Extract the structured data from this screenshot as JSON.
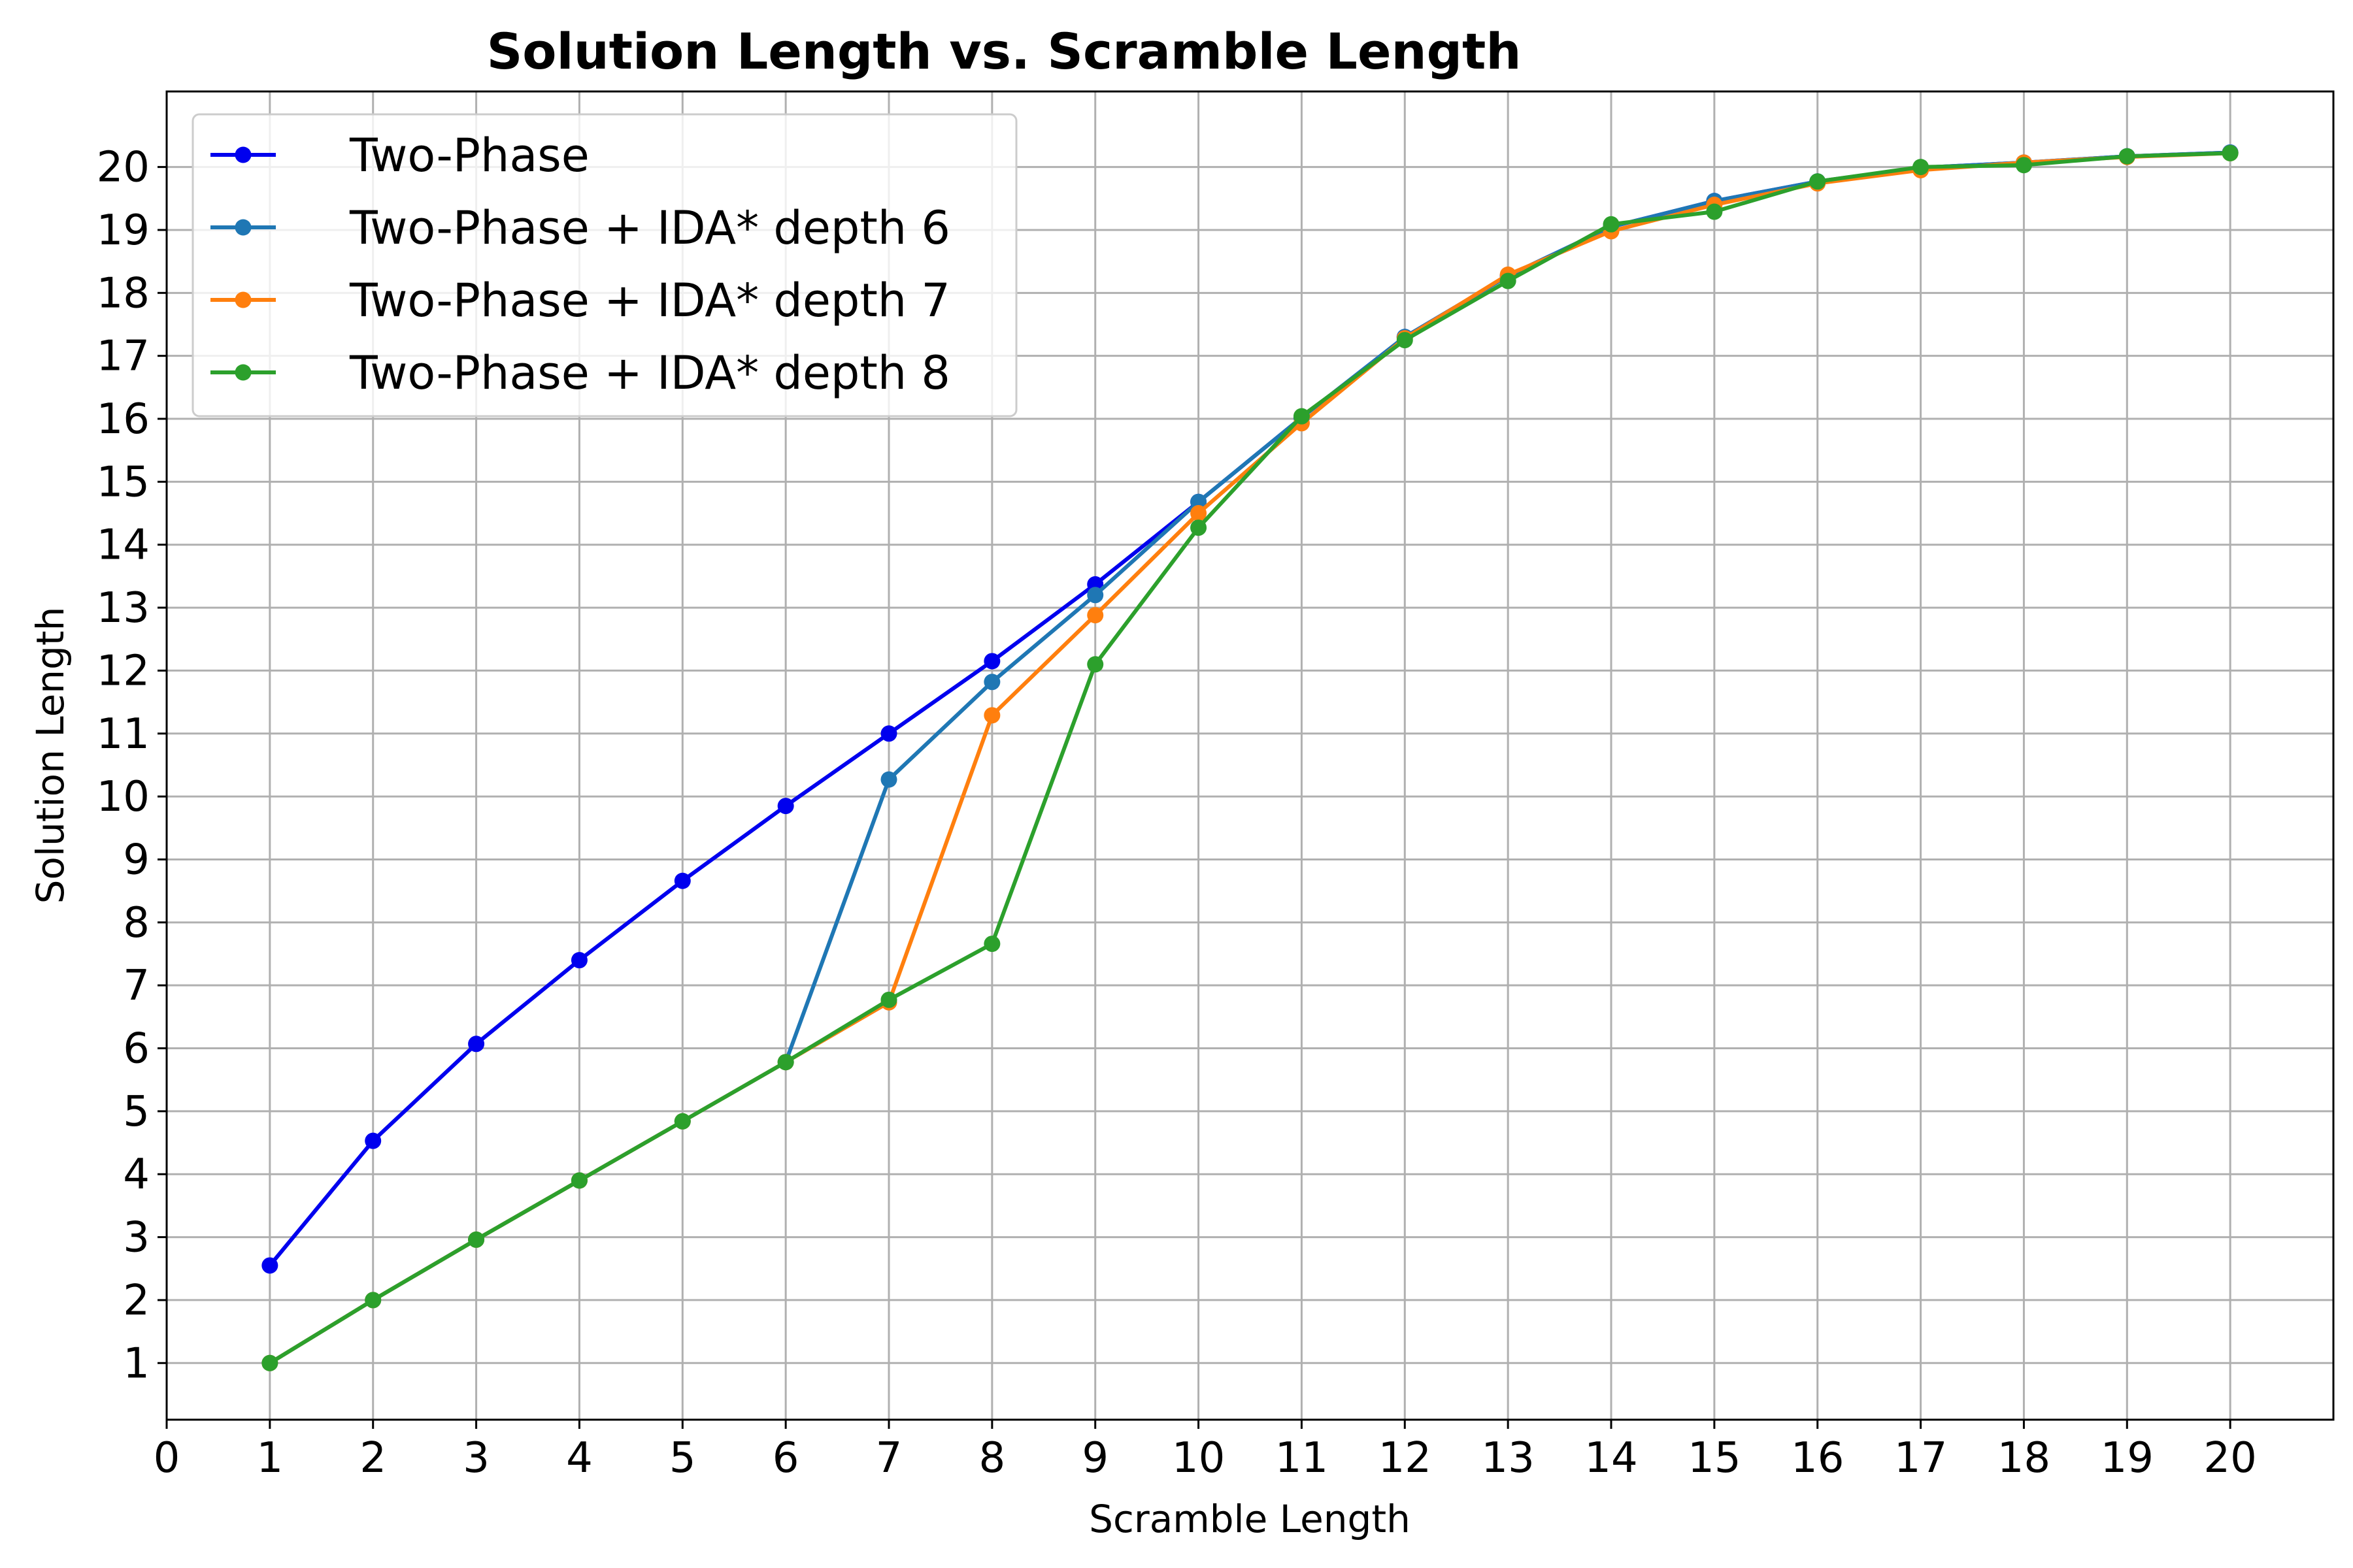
{
  "chart_data": {
    "type": "line",
    "title": "Solution Length vs. Scramble Length",
    "xlabel": "Scramble Length",
    "ylabel": "Solution Length",
    "xlim": [
      0,
      21
    ],
    "ylim": [
      0.1,
      21.2
    ],
    "x_ticks": [
      0,
      1,
      2,
      3,
      4,
      5,
      6,
      7,
      8,
      9,
      10,
      11,
      12,
      13,
      14,
      15,
      16,
      17,
      18,
      19,
      20
    ],
    "y_ticks": [
      1,
      2,
      3,
      4,
      5,
      6,
      7,
      8,
      9,
      10,
      11,
      12,
      13,
      14,
      15,
      16,
      17,
      18,
      19,
      20
    ],
    "grid": true,
    "legend_position": "top-left",
    "x": [
      1,
      2,
      3,
      4,
      5,
      6,
      7,
      8,
      9,
      10,
      11,
      12,
      13,
      14,
      15,
      16,
      17,
      18,
      19,
      20
    ],
    "series": [
      {
        "name": "Two-Phase",
        "color": "#0000ee",
        "values": [
          2.55,
          4.53,
          6.07,
          7.4,
          8.66,
          9.85,
          11.0,
          12.15,
          13.37,
          14.68,
          16.02,
          17.3,
          18.27,
          19.05,
          19.46,
          19.77,
          19.99,
          20.07,
          20.17,
          20.23
        ]
      },
      {
        "name": "Two-Phase + IDA* depth 6",
        "color": "#1f77b4",
        "values": [
          1.0,
          2.0,
          2.96,
          3.9,
          4.84,
          5.78,
          10.27,
          11.82,
          13.2,
          14.68,
          16.02,
          17.3,
          18.27,
          19.05,
          19.46,
          19.77,
          19.99,
          20.07,
          20.17,
          20.23
        ]
      },
      {
        "name": "Two-Phase + IDA* depth 7",
        "color": "#ff7f0e",
        "values": [
          1.0,
          2.0,
          2.96,
          3.9,
          4.84,
          5.78,
          6.73,
          11.29,
          12.88,
          14.5,
          15.93,
          17.28,
          18.29,
          18.98,
          19.4,
          19.74,
          19.95,
          20.07,
          20.16,
          20.22
        ]
      },
      {
        "name": "Two-Phase + IDA* depth 8",
        "color": "#2ca02c",
        "values": [
          1.0,
          2.0,
          2.96,
          3.9,
          4.84,
          5.78,
          6.77,
          7.66,
          12.1,
          14.27,
          16.04,
          17.25,
          18.19,
          19.09,
          19.29,
          19.77,
          20.0,
          20.03,
          20.17,
          20.22
        ]
      }
    ]
  }
}
